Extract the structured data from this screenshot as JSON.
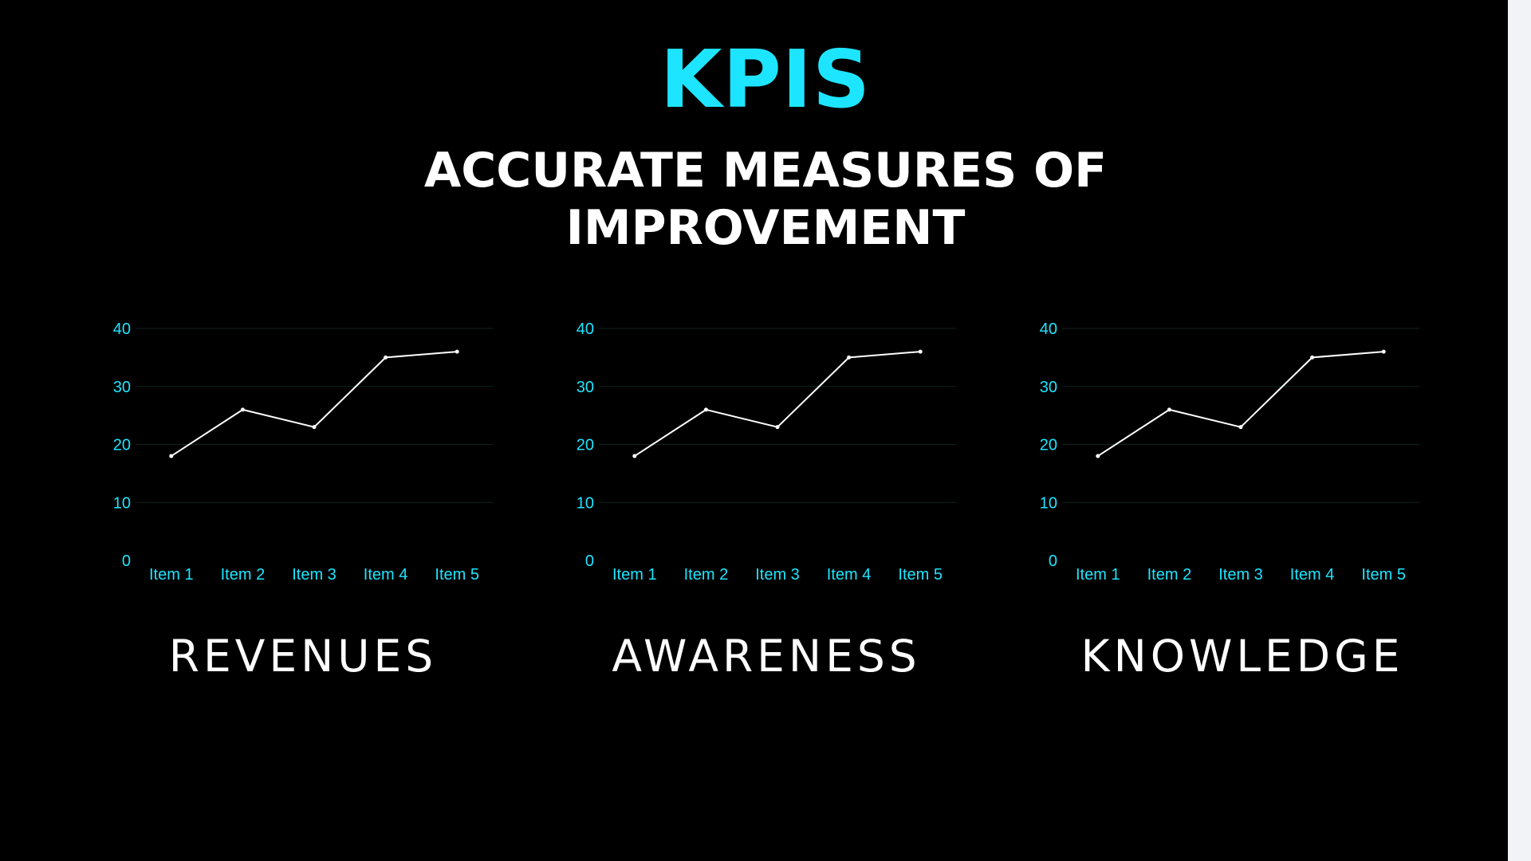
{
  "header": {
    "title": "KPIS",
    "subtitle": "ACCURATE MEASURES OF\nIMPROVEMENT"
  },
  "colors": {
    "background": "#000000",
    "accent": "#1ee5ff",
    "text": "#ffffff",
    "line": "#ffffff",
    "grid": "#0f2420",
    "side_panel": "#f1f3f6"
  },
  "chart_data": [
    {
      "type": "line",
      "title": "REVENUES",
      "categories": [
        "Item 1",
        "Item 2",
        "Item 3",
        "Item 4",
        "Item 5"
      ],
      "values": [
        18,
        26,
        23,
        35,
        36
      ],
      "ylim": [
        0,
        40
      ],
      "yticks": [
        "0",
        "10",
        "20",
        "30",
        "40"
      ],
      "grid": true
    },
    {
      "type": "line",
      "title": "AWARENESS",
      "categories": [
        "Item 1",
        "Item 2",
        "Item 3",
        "Item 4",
        "Item 5"
      ],
      "values": [
        18,
        26,
        23,
        35,
        36
      ],
      "ylim": [
        0,
        40
      ],
      "yticks": [
        "0",
        "10",
        "20",
        "30",
        "40"
      ],
      "grid": true
    },
    {
      "type": "line",
      "title": "KNOWLEDGE",
      "categories": [
        "Item 1",
        "Item 2",
        "Item 3",
        "Item 4",
        "Item 5"
      ],
      "values": [
        18,
        26,
        23,
        35,
        36
      ],
      "ylim": [
        0,
        40
      ],
      "yticks": [
        "0",
        "10",
        "20",
        "30",
        "40"
      ],
      "grid": true
    }
  ]
}
